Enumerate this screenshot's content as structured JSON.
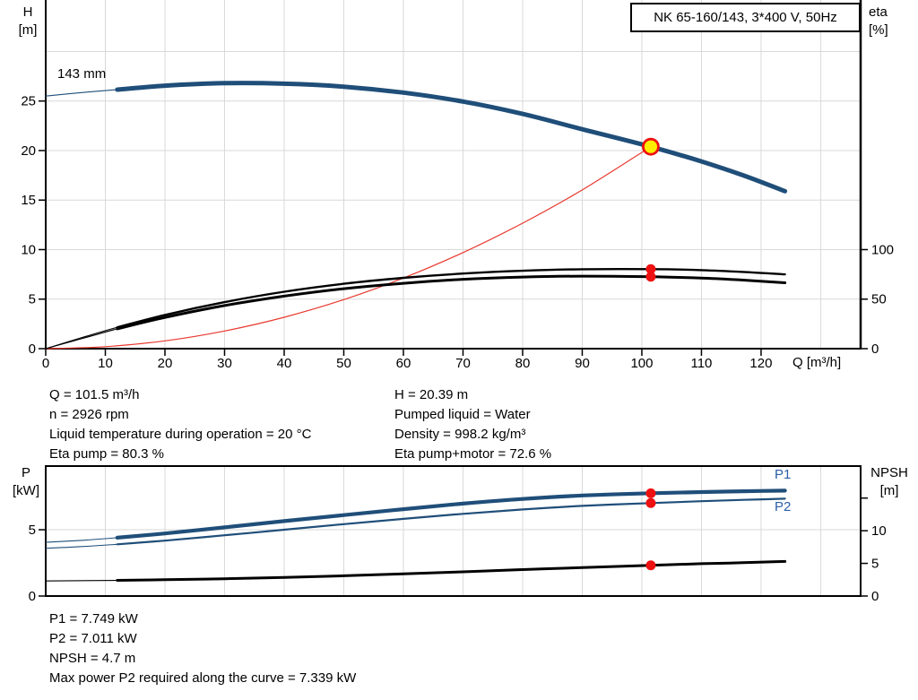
{
  "header": {
    "title_box": "NK 65-160/143, 3*400 V, 50Hz"
  },
  "colors": {
    "curve_blue": "#1f4e79",
    "label_blue": "#2a5ea8",
    "red": "#e8392f",
    "dot_red": "#ee1111",
    "duty_fill": "#ffec00",
    "grid": "#d9d9d9",
    "axis": "#000000",
    "background": "#ffffff"
  },
  "info_top": {
    "left": [
      "Q = 101.5 m³/h",
      "n = 2926 rpm",
      "Liquid temperature during operation = 20 °C",
      "Eta pump = 80.3 %"
    ],
    "right": [
      "H = 20.39 m",
      "Pumped liquid = Water",
      "Density = 998.2 kg/m³",
      "Eta pump+motor = 72.6 %"
    ]
  },
  "info_bottom": [
    "P1 = 7.749 kW",
    "P2 = 7.011 kW",
    "NPSH = 4.7 m",
    "Max power P2 required along the curve = 7.339 kW"
  ],
  "chart_data": [
    {
      "type": "line",
      "name": "qh-chart",
      "title": "NK 65-160/143, 3*400 V, 50Hz",
      "x_axis": {
        "label": "Q [m³/h]",
        "min": 0,
        "max": 136.7,
        "tick_values": [
          0,
          10,
          20,
          30,
          40,
          50,
          60,
          70,
          80,
          90,
          100,
          110,
          120
        ],
        "grid_values": [
          10,
          20,
          30,
          40,
          50,
          60,
          70,
          80,
          90,
          100,
          110,
          120,
          130
        ]
      },
      "y_left": {
        "label": [
          "H",
          "[m]"
        ],
        "min": 0,
        "max": 35.2,
        "tick_values": [
          0,
          5,
          10,
          15,
          20,
          25
        ],
        "grid_values": [
          5,
          10,
          15,
          20,
          25,
          30
        ]
      },
      "y_right": {
        "label": [
          "eta",
          "[%]"
        ],
        "min": 0,
        "max": 352,
        "tick_values": [
          0,
          50,
          100
        ]
      },
      "series": [
        {
          "name": "system-curve",
          "axis": "left",
          "color": "red",
          "width": 1.2,
          "points": [
            [
              0,
              0
            ],
            [
              10,
              0.2
            ],
            [
              20,
              0.79
            ],
            [
              30,
              1.78
            ],
            [
              40,
              3.17
            ],
            [
              50,
              4.95
            ],
            [
              60,
              7.13
            ],
            [
              70,
              9.7
            ],
            [
              80,
              12.67
            ],
            [
              90,
              16.03
            ],
            [
              101.5,
              20.39
            ]
          ]
        },
        {
          "name": "eta-pump-curve",
          "axis": "right",
          "color": "axis",
          "width": 2.4,
          "thick_from": 12,
          "points": [
            [
              0,
              0
            ],
            [
              6,
              11
            ],
            [
              12,
              21.5
            ],
            [
              20,
              34
            ],
            [
              30,
              47
            ],
            [
              40,
              57.5
            ],
            [
              50,
              65.5
            ],
            [
              60,
              71.5
            ],
            [
              70,
              75.8
            ],
            [
              80,
              78.6
            ],
            [
              90,
              80.2
            ],
            [
              101.5,
              80.3
            ],
            [
              110,
              79.3
            ],
            [
              117,
              77.5
            ],
            [
              124,
              75
            ]
          ]
        },
        {
          "name": "eta-pump-motor-curve",
          "axis": "right",
          "color": "axis",
          "width": 3,
          "thick_from": 12,
          "points": [
            [
              0,
              0
            ],
            [
              6,
              10
            ],
            [
              12,
              20
            ],
            [
              20,
              31.5
            ],
            [
              30,
              43.5
            ],
            [
              40,
              53
            ],
            [
              50,
              60.5
            ],
            [
              60,
              66
            ],
            [
              70,
              70
            ],
            [
              80,
              72.3
            ],
            [
              90,
              73.2
            ],
            [
              101.5,
              72.6
            ],
            [
              110,
              71.2
            ],
            [
              117,
              69.2
            ],
            [
              124,
              66.5
            ]
          ]
        },
        {
          "name": "head-curve",
          "label": "143 mm",
          "axis": "left",
          "color": "curve_blue",
          "width": 5,
          "thick_from": 12,
          "points": [
            [
              0,
              25.5
            ],
            [
              6,
              25.85
            ],
            [
              12,
              26.15
            ],
            [
              20,
              26.55
            ],
            [
              30,
              26.8
            ],
            [
              40,
              26.75
            ],
            [
              50,
              26.45
            ],
            [
              60,
              25.85
            ],
            [
              70,
              24.95
            ],
            [
              80,
              23.7
            ],
            [
              90,
              22.15
            ],
            [
              101.5,
              20.39
            ],
            [
              110,
              18.9
            ],
            [
              117,
              17.5
            ],
            [
              124,
              15.9
            ]
          ]
        }
      ],
      "duty_point": {
        "q": 101.5,
        "value": 20.39,
        "axis": "left"
      },
      "duty_dots": [
        {
          "q": 101.5,
          "value": 80.3,
          "axis": "right"
        },
        {
          "q": 101.5,
          "value": 72.6,
          "axis": "right"
        }
      ]
    },
    {
      "type": "line",
      "name": "power-npsh-chart",
      "title": "",
      "x_axis": {
        "label": "",
        "min": 0,
        "max": 136.7,
        "tick_values": [],
        "grid_values": [
          10,
          20,
          30,
          40,
          50,
          60,
          70,
          80,
          90,
          100,
          110,
          120,
          130
        ]
      },
      "y_left": {
        "label": [
          "P",
          "[kW]"
        ],
        "min": 0,
        "max": 9.8,
        "tick_values": [
          0,
          5
        ],
        "grid_values": [
          5
        ]
      },
      "y_right": {
        "label": [
          "NPSH",
          "[m]"
        ],
        "min": 0,
        "max": 19.9,
        "tick_values": [
          0,
          5,
          10,
          15
        ],
        "tick_labels": [
          "0",
          "5",
          "10",
          ""
        ]
      },
      "series": [
        {
          "name": "npsh-curve",
          "axis": "right",
          "color": "axis",
          "width": 3,
          "thick_from": 12,
          "points": [
            [
              0,
              2.3
            ],
            [
              12,
              2.4
            ],
            [
              20,
              2.5
            ],
            [
              30,
              2.65
            ],
            [
              40,
              2.85
            ],
            [
              50,
              3.1
            ],
            [
              60,
              3.4
            ],
            [
              70,
              3.7
            ],
            [
              80,
              4.05
            ],
            [
              90,
              4.35
            ],
            [
              101.5,
              4.7
            ],
            [
              110,
              4.95
            ],
            [
              117,
              5.1
            ],
            [
              124,
              5.3
            ]
          ]
        },
        {
          "name": "p2-curve",
          "label": "P2",
          "axis": "left",
          "color": "curve_blue",
          "width": 2.2,
          "thick_from": 12,
          "points": [
            [
              0,
              3.6
            ],
            [
              6,
              3.73
            ],
            [
              12,
              3.9
            ],
            [
              20,
              4.18
            ],
            [
              30,
              4.58
            ],
            [
              40,
              5.0
            ],
            [
              50,
              5.42
            ],
            [
              60,
              5.82
            ],
            [
              70,
              6.2
            ],
            [
              80,
              6.53
            ],
            [
              90,
              6.8
            ],
            [
              101.5,
              7.011
            ],
            [
              110,
              7.15
            ],
            [
              117,
              7.25
            ],
            [
              124,
              7.34
            ]
          ]
        },
        {
          "name": "p1-curve",
          "label": "P1",
          "axis": "left",
          "color": "curve_blue",
          "width": 4.2,
          "thick_from": 12,
          "points": [
            [
              0,
              4.05
            ],
            [
              6,
              4.2
            ],
            [
              12,
              4.4
            ],
            [
              20,
              4.72
            ],
            [
              30,
              5.18
            ],
            [
              40,
              5.65
            ],
            [
              50,
              6.1
            ],
            [
              60,
              6.55
            ],
            [
              70,
              6.97
            ],
            [
              80,
              7.32
            ],
            [
              90,
              7.58
            ],
            [
              101.5,
              7.749
            ],
            [
              110,
              7.84
            ],
            [
              117,
              7.9
            ],
            [
              124,
              7.95
            ]
          ]
        }
      ],
      "duty_dots": [
        {
          "q": 101.5,
          "value": 7.749,
          "axis": "left"
        },
        {
          "q": 101.5,
          "value": 7.011,
          "axis": "left"
        },
        {
          "q": 101.5,
          "value": 4.7,
          "axis": "right"
        }
      ]
    }
  ]
}
